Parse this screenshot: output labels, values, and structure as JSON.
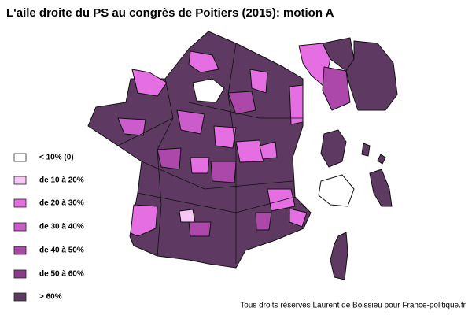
{
  "title": "L'aile droite du PS au congrès de Poitiers (2015): motion A",
  "legend": [
    {
      "label": "< 10% (0)",
      "color": "#ffffff"
    },
    {
      "label": "de 10 à 20%",
      "color": "#f6c6f4"
    },
    {
      "label": "de 20 à 30%",
      "color": "#e46ee2"
    },
    {
      "label": "de 30 à 40%",
      "color": "#cc5ccb"
    },
    {
      "label": "de 40 à 50%",
      "color": "#ab48aa"
    },
    {
      "label": "de 50 à 60%",
      "color": "#8c3a8c"
    },
    {
      "label": "> 60%",
      "color": "#5e3a62"
    }
  ],
  "credit": "Tous droits réservés Laurent de Boissieu pour France-politique.fr"
}
